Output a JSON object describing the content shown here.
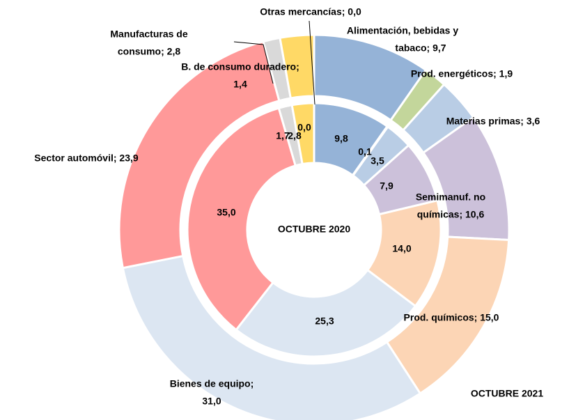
{
  "chart_data": {
    "type": "donut",
    "colors": [
      "#95b3d7",
      "#c3d69b",
      "#b9cde5",
      "#ccc1da",
      "#fcd5b5",
      "#dce6f2",
      "#ff9999",
      "#d9d9d9",
      "#ffd966",
      "#7f7f7f"
    ],
    "series": [
      {
        "name": "OCTUBRE 2021",
        "values": [
          9.7,
          1.9,
          3.6,
          10.6,
          15.0,
          31.0,
          23.9,
          1.4,
          2.8,
          0.0
        ],
        "value_labels": [
          [
            "Alimentación, bebidas y",
            "tabaco; 9,7"
          ],
          [
            "Prod. energéticos; 1,9"
          ],
          [
            "Materias primas; 3,6"
          ],
          [
            "Semimanuf. no",
            "químicas; 10,6"
          ],
          [
            "Prod. químicos; 15,0"
          ],
          [
            "Bienes de equipo;",
            "31,0"
          ],
          [
            "Sector automóvil; 23,9"
          ],
          [
            "B. de consumo duradero;",
            "1,4"
          ],
          [
            "Manufacturas de",
            "consumo; 2,8"
          ],
          [
            "Otras mercancías; 0,0"
          ]
        ]
      },
      {
        "name": "OCTUBRE 2020",
        "values": [
          9.8,
          0.1,
          3.5,
          7.9,
          14.0,
          25.3,
          35.0,
          1.7,
          2.8,
          0.0
        ],
        "value_labels": [
          "9,8",
          "0,1",
          "3,5",
          "7,9",
          "14,0",
          "25,3",
          "35,0",
          "1,7",
          "2,8",
          "0,0"
        ]
      }
    ]
  }
}
